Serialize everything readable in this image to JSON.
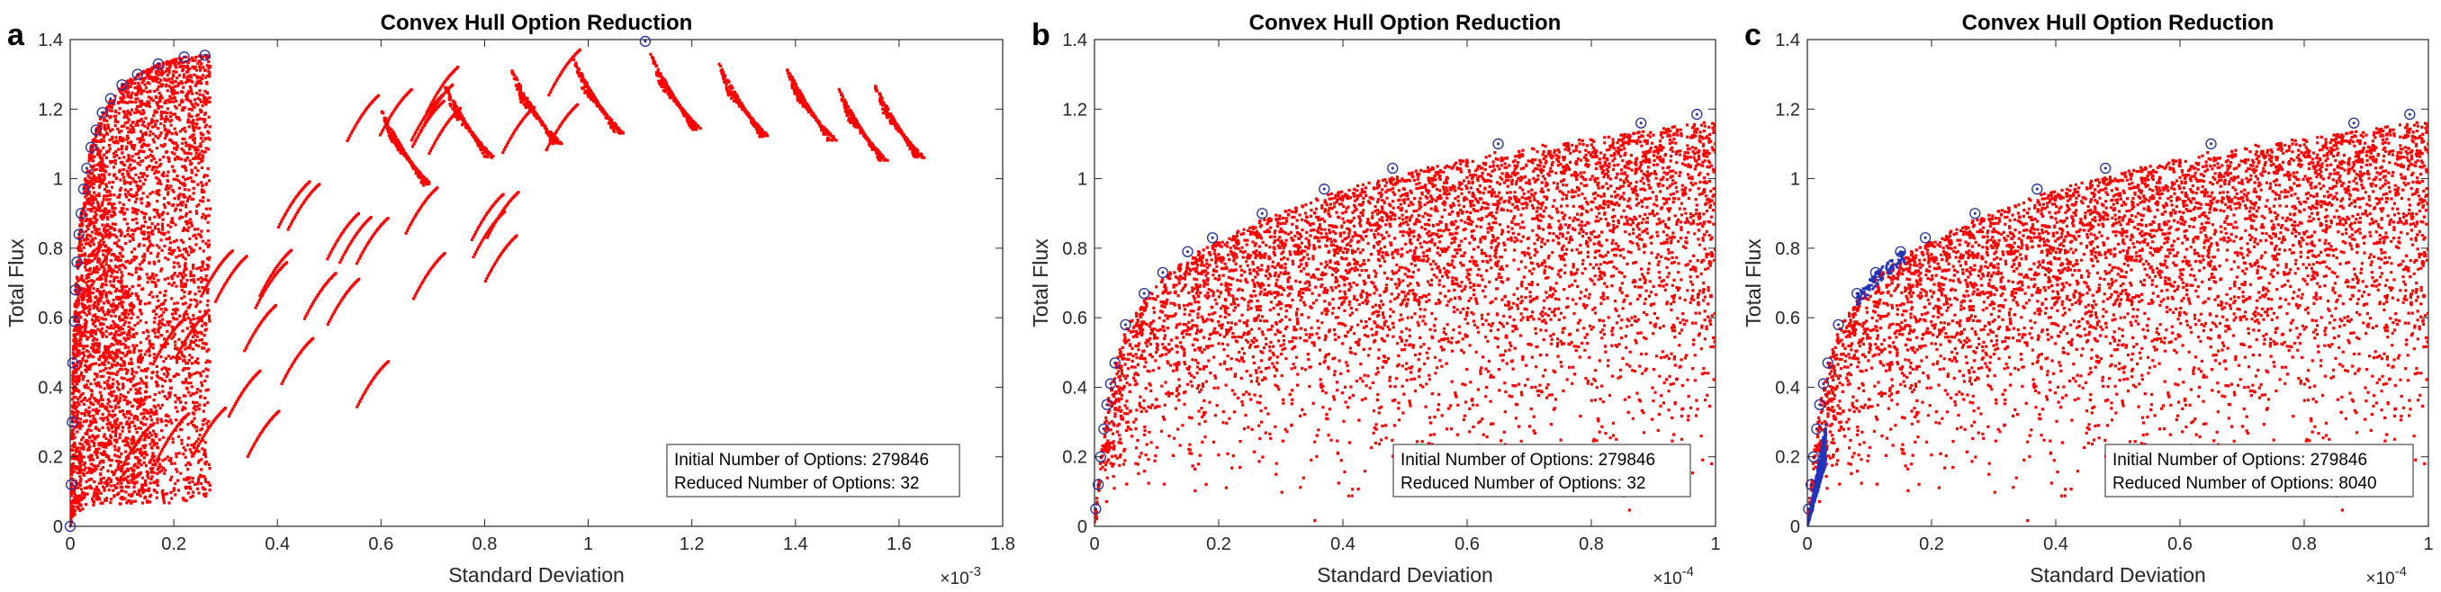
{
  "chart_data": [
    {
      "panel_label": "a",
      "type": "scatter",
      "title": "Convex Hull Option Reduction",
      "xlabel": "Standard Deviation",
      "ylabel": "Total Flux",
      "x_multiplier_base": "×10",
      "x_multiplier_exp": "-3",
      "xlim": [
        0,
        1.8
      ],
      "ylim": [
        0,
        1.4
      ],
      "xticks": [
        "0",
        "0.2",
        "0.4",
        "0.6",
        "0.8",
        "1",
        "1.2",
        "1.4",
        "1.6",
        "1.8"
      ],
      "yticks": [
        "0",
        "0.2",
        "0.4",
        "0.6",
        "0.8",
        "1",
        "1.2",
        "1.4"
      ],
      "legend_lines": [
        "Initial Number of Options:  279846",
        "Reduced Number of Options:  32"
      ],
      "series": [
        {
          "color": "#ff0000",
          "marker": "dot",
          "distribution": "hull_cloud_plus_streaks"
        },
        {
          "color": "#2233bb",
          "marker": "circle",
          "points": [
            [
              0,
              0
            ],
            [
              0.002,
              0.12
            ],
            [
              0.004,
              0.3
            ],
            [
              0.005,
              0.47
            ],
            [
              0.008,
              0.59
            ],
            [
              0.01,
              0.68
            ],
            [
              0.013,
              0.76
            ],
            [
              0.017,
              0.84
            ],
            [
              0.021,
              0.9
            ],
            [
              0.026,
              0.97
            ],
            [
              0.032,
              1.03
            ],
            [
              0.04,
              1.09
            ],
            [
              0.05,
              1.14
            ],
            [
              0.062,
              1.19
            ],
            [
              0.078,
              1.23
            ],
            [
              0.1,
              1.27
            ],
            [
              0.13,
              1.3
            ],
            [
              0.17,
              1.33
            ],
            [
              0.22,
              1.35
            ],
            [
              0.26,
              1.355
            ],
            [
              1.11,
              1.395
            ]
          ]
        }
      ]
    },
    {
      "panel_label": "b",
      "type": "scatter",
      "title": "Convex Hull Option Reduction",
      "xlabel": "Standard Deviation",
      "ylabel": "Total Flux",
      "x_multiplier_base": "×10",
      "x_multiplier_exp": "-4",
      "xlim": [
        0,
        1
      ],
      "ylim": [
        0,
        1.4
      ],
      "xticks": [
        "0",
        "0.2",
        "0.4",
        "0.6",
        "0.8",
        "1"
      ],
      "yticks": [
        "0",
        "0.2",
        "0.4",
        "0.6",
        "0.8",
        "1",
        "1.2",
        "1.4"
      ],
      "legend_lines": [
        "Initial Number of Options:  279846",
        "Reduced Number of Options:  32"
      ],
      "series": [
        {
          "color": "#ff0000",
          "marker": "dot",
          "distribution": "dense_cloud"
        },
        {
          "color": "#2233bb",
          "marker": "circle",
          "points": [
            [
              0.002,
              0.05
            ],
            [
              0.006,
              0.12
            ],
            [
              0.01,
              0.2
            ],
            [
              0.015,
              0.28
            ],
            [
              0.02,
              0.35
            ],
            [
              0.026,
              0.41
            ],
            [
              0.033,
              0.47
            ],
            [
              0.05,
              0.58
            ],
            [
              0.08,
              0.67
            ],
            [
              0.11,
              0.73
            ],
            [
              0.15,
              0.79
            ],
            [
              0.19,
              0.83
            ],
            [
              0.27,
              0.9
            ],
            [
              0.37,
              0.97
            ],
            [
              0.48,
              1.03
            ],
            [
              0.65,
              1.1
            ],
            [
              0.88,
              1.16
            ],
            [
              0.97,
              1.185
            ]
          ]
        }
      ]
    },
    {
      "panel_label": "c",
      "type": "scatter",
      "title": "Convex Hull Option Reduction",
      "xlabel": "Standard Deviation",
      "ylabel": "Total Flux",
      "x_multiplier_base": "×10",
      "x_multiplier_exp": "-4",
      "xlim": [
        0,
        1
      ],
      "ylim": [
        0,
        1.4
      ],
      "xticks": [
        "0",
        "0.2",
        "0.4",
        "0.6",
        "0.8",
        "1"
      ],
      "yticks": [
        "0",
        "0.2",
        "0.4",
        "0.6",
        "0.8",
        "1",
        "1.2",
        "1.4"
      ],
      "legend_lines": [
        "Initial Number of Options:  279846",
        "Reduced Number of Options:  8040"
      ],
      "series": [
        {
          "color": "#ff0000",
          "marker": "dot",
          "distribution": "dense_cloud"
        },
        {
          "color": "#2233bb",
          "marker": "circle",
          "points": [
            [
              0.002,
              0.05
            ],
            [
              0.006,
              0.12
            ],
            [
              0.01,
              0.2
            ],
            [
              0.015,
              0.28
            ],
            [
              0.02,
              0.35
            ],
            [
              0.026,
              0.41
            ],
            [
              0.033,
              0.47
            ],
            [
              0.05,
              0.58
            ],
            [
              0.08,
              0.67
            ],
            [
              0.11,
              0.73
            ],
            [
              0.15,
              0.79
            ],
            [
              0.19,
              0.83
            ],
            [
              0.27,
              0.9
            ],
            [
              0.37,
              0.97
            ],
            [
              0.48,
              1.03
            ],
            [
              0.65,
              1.1
            ],
            [
              0.88,
              1.16
            ],
            [
              0.97,
              1.185
            ]
          ]
        }
      ]
    }
  ]
}
